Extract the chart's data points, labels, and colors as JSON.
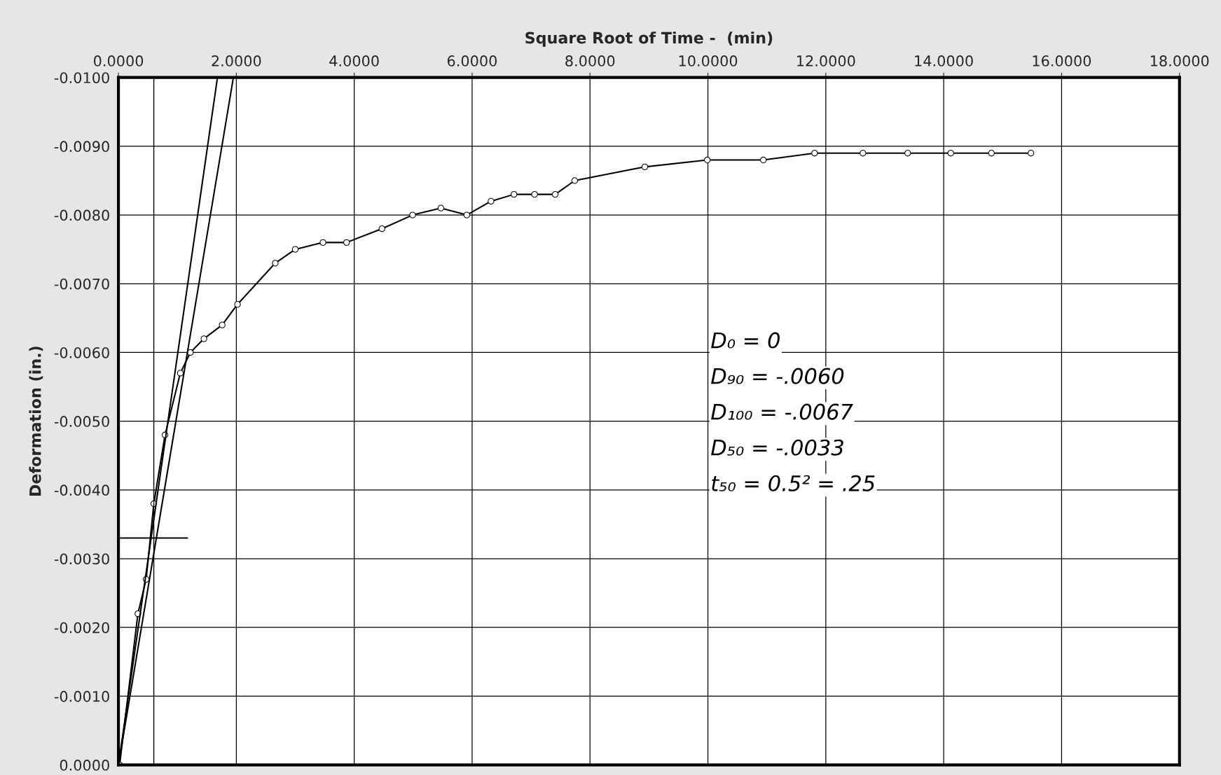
{
  "chart_data": {
    "type": "line",
    "xlabel": "Square Root of Time -  (min)",
    "ylabel": "Deformation (in.)",
    "xlim": [
      0,
      18
    ],
    "ylim": [
      0,
      -0.01
    ],
    "xticks": [
      {
        "value": 0,
        "label": "0.0000"
      },
      {
        "value": 2,
        "label": "2.0000"
      },
      {
        "value": 4,
        "label": "4.0000"
      },
      {
        "value": 6,
        "label": "6.0000"
      },
      {
        "value": 8,
        "label": "8.0000"
      },
      {
        "value": 10,
        "label": "10.0000"
      },
      {
        "value": 12,
        "label": "12.0000"
      },
      {
        "value": 14,
        "label": "14.0000"
      },
      {
        "value": 16,
        "label": "16.0000"
      },
      {
        "value": 18,
        "label": "18.0000"
      }
    ],
    "yticks": [
      {
        "value": 0,
        "label": "0.0000"
      },
      {
        "value": -0.001,
        "label": "-0.0010"
      },
      {
        "value": -0.002,
        "label": "-0.0020"
      },
      {
        "value": -0.003,
        "label": "-0.0030"
      },
      {
        "value": -0.004,
        "label": "-0.0040"
      },
      {
        "value": -0.005,
        "label": "-0.0050"
      },
      {
        "value": -0.006,
        "label": "-0.0060"
      },
      {
        "value": -0.007,
        "label": "-0.0070"
      },
      {
        "value": -0.008,
        "label": "-0.0080"
      },
      {
        "value": -0.009,
        "label": "-0.0090"
      },
      {
        "value": -0.01,
        "label": "-0.0100"
      }
    ],
    "grid": true,
    "legend": false,
    "series": [
      {
        "color": "#000000",
        "marker": "circle",
        "x": [
          0.02,
          0.33,
          0.47,
          0.6,
          0.79,
          1.05,
          1.22,
          1.45,
          1.76,
          2.02,
          2.66,
          3.0,
          3.47,
          3.87,
          4.47,
          4.99,
          5.47,
          5.91,
          6.32,
          6.71,
          7.06,
          7.41,
          7.74,
          8.93,
          9.99,
          10.94,
          11.81,
          12.63,
          13.39,
          14.12,
          14.81,
          15.48
        ],
        "values": [
          0,
          -0.0022,
          -0.0027,
          -0.0038,
          -0.0048,
          -0.0057,
          -0.006,
          -0.0062,
          -0.0064,
          -0.0067,
          -0.0073,
          -0.0075,
          -0.0076,
          -0.0076,
          -0.0078,
          -0.008,
          -0.0081,
          -0.008,
          -0.0082,
          -0.0083,
          -0.0083,
          -0.0083,
          -0.0085,
          -0.0087,
          -0.0088,
          -0.0088,
          -0.0089,
          -0.0089,
          -0.0089,
          -0.0089,
          -0.0089,
          -0.0089
        ]
      },
      {
        "type": "line",
        "color": "#000000",
        "marker": "none",
        "x": [
          0,
          1.68
        ],
        "values": [
          0,
          -0.01
        ]
      },
      {
        "type": "line",
        "color": "#000000",
        "marker": "none",
        "x": [
          0,
          1.95
        ],
        "values": [
          0,
          -0.01
        ]
      },
      {
        "type": "line",
        "color": "#000000",
        "marker": "none",
        "x": [
          0,
          1.17
        ],
        "values": [
          -0.0033,
          -0.0033
        ]
      }
    ],
    "ref_lines": [
      {
        "axis": "x",
        "value": 0.6,
        "color": "#000000"
      }
    ],
    "annotations": [
      "D₀ = 0",
      "D₉₀ = -.0060",
      "D₁₀₀ = -.0067",
      "D₅₀ = -.0033",
      "t₅₀ = 0.5² = .25"
    ]
  }
}
